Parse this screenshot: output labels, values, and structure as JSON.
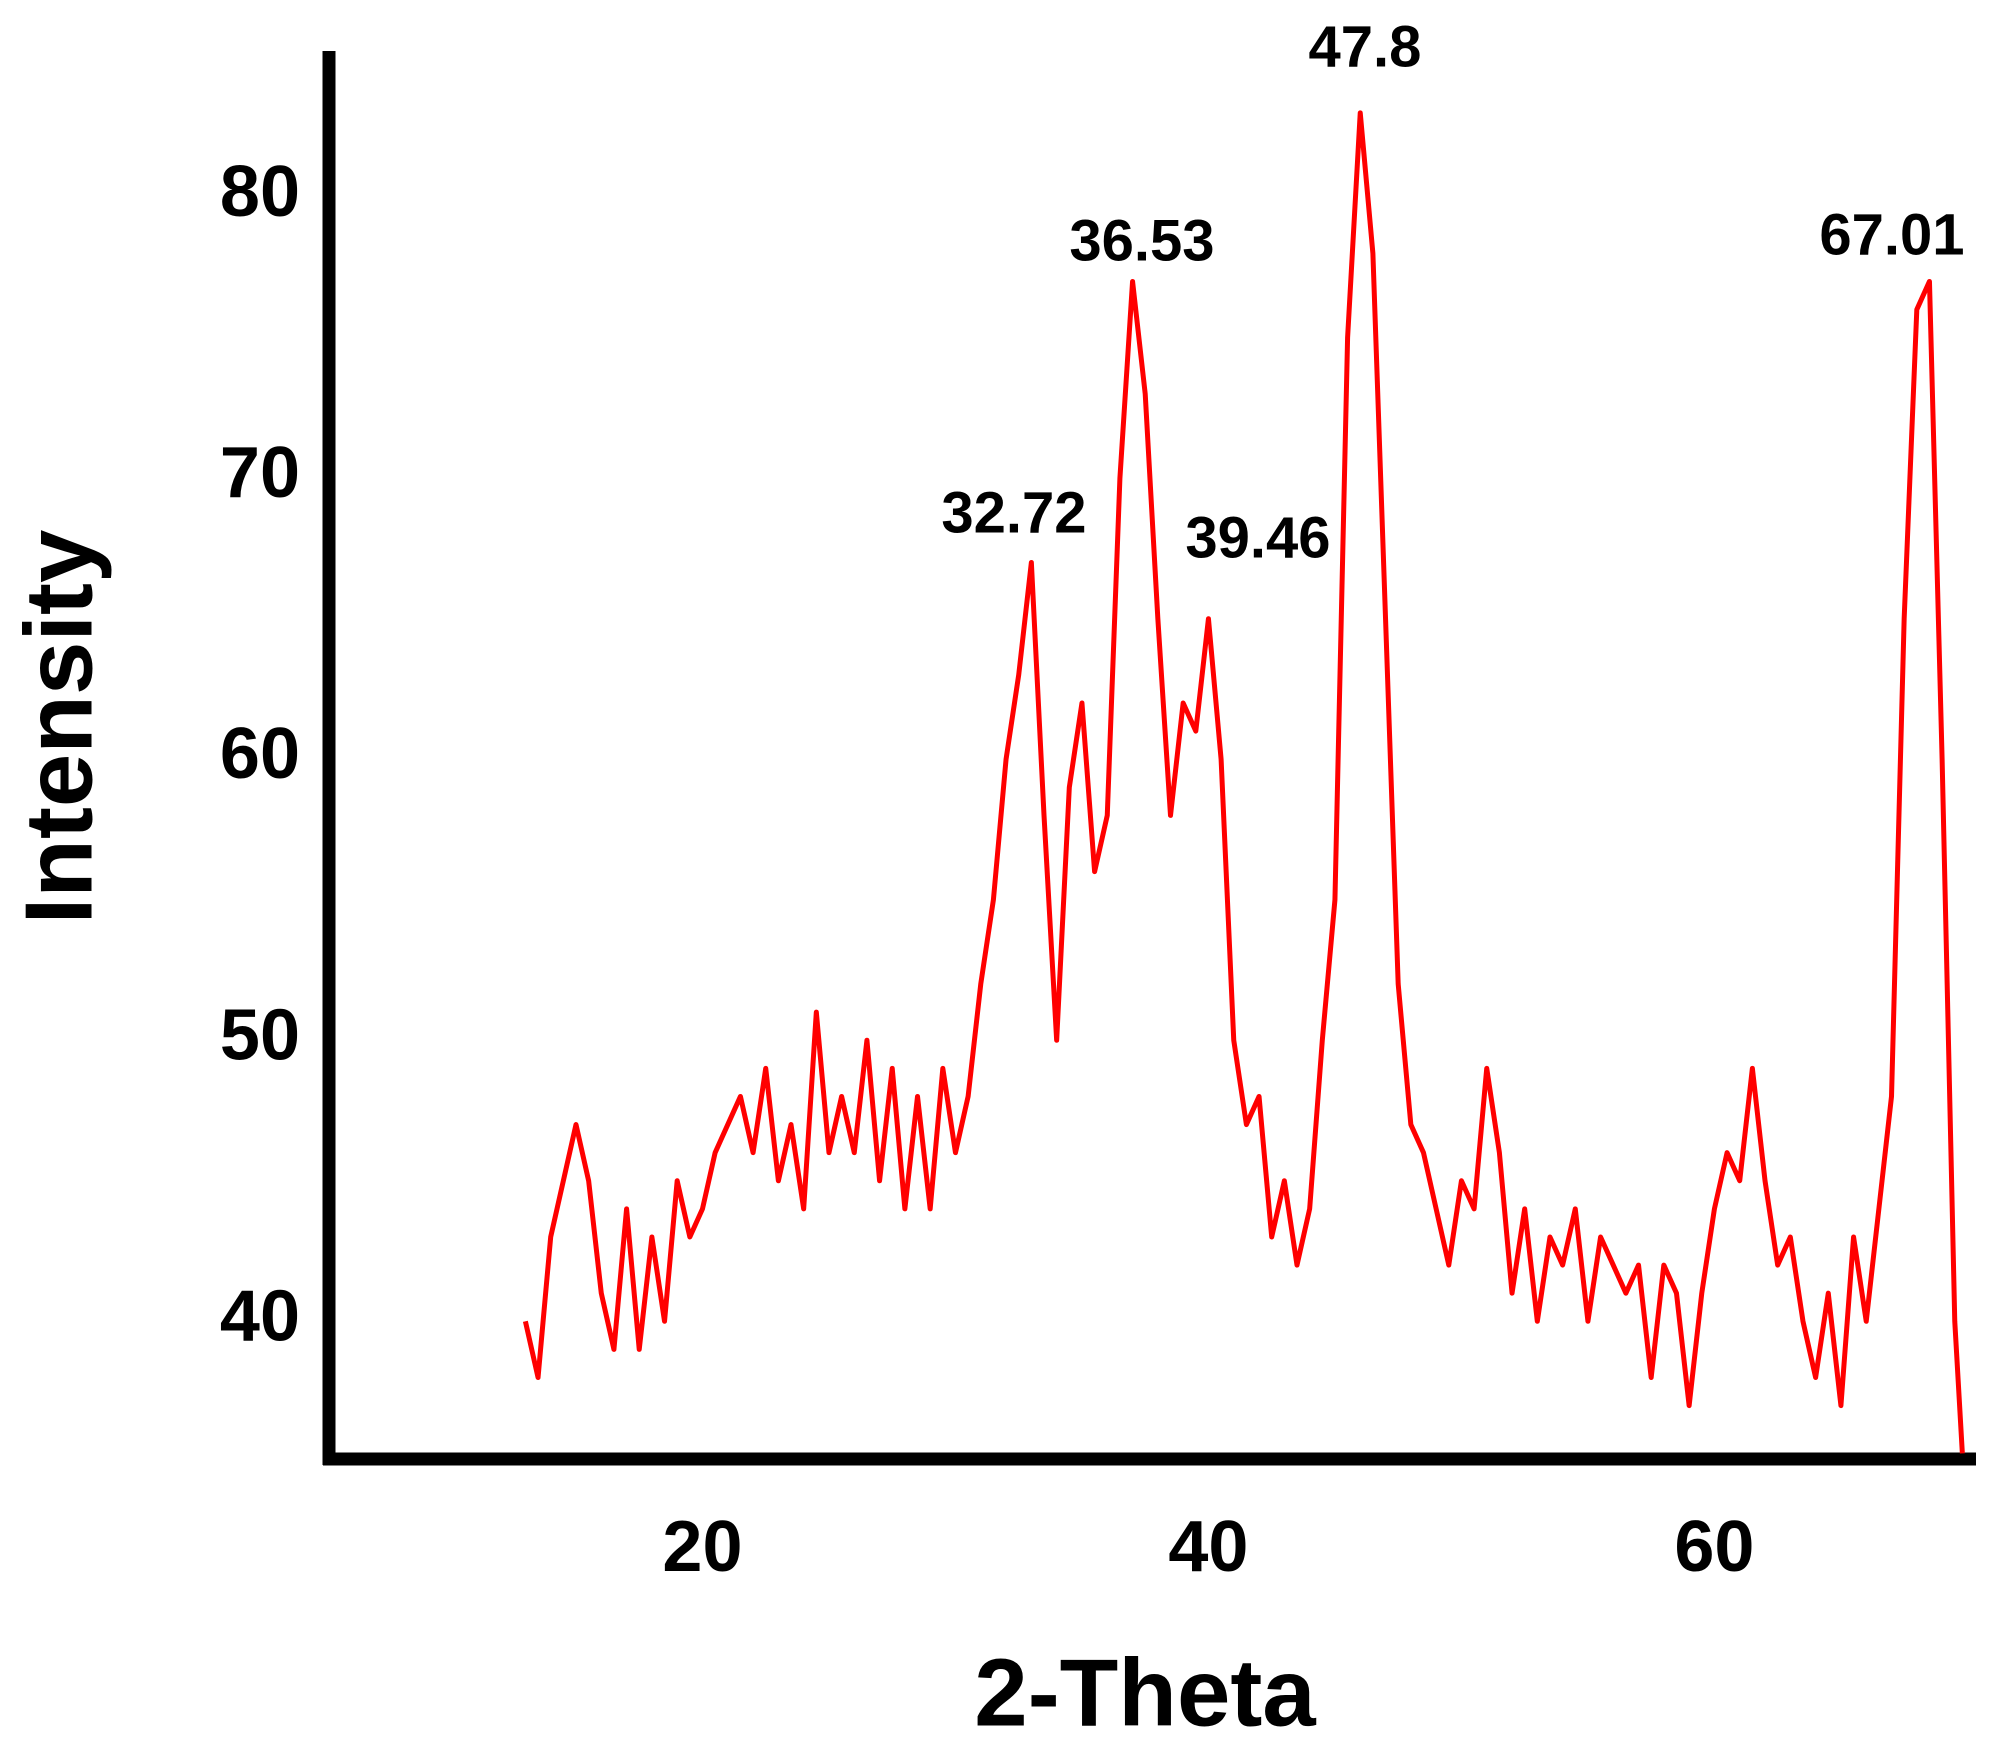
{
  "chart_data": {
    "type": "line",
    "xlabel": "2-Theta",
    "ylabel": "Intensity",
    "xlim": [
      5,
      70.3
    ],
    "ylim": [
      35.1,
      85.2
    ],
    "xticks": [
      20,
      40,
      60
    ],
    "yticks": [
      40,
      50,
      60,
      70,
      80
    ],
    "grid": false,
    "annotations": [
      "32.72",
      "36.53",
      "39.46",
      "47.8",
      "67.01"
    ],
    "series": [
      {
        "color": "#ff0000",
        "x": [
          13,
          13.5,
          14,
          14.5,
          15,
          15.5,
          16,
          16.5,
          17,
          17.5,
          18,
          18.5,
          19,
          19.5,
          20,
          20.5,
          21,
          21.5,
          22,
          22.5,
          23,
          23.5,
          24,
          24.5,
          25,
          25.5,
          26,
          26.5,
          27,
          27.5,
          28,
          28.5,
          29,
          29.5,
          30,
          30.5,
          31,
          31.5,
          32,
          32.5,
          33,
          33.5,
          34,
          34.5,
          35,
          35.5,
          36,
          36.5,
          37,
          37.5,
          38,
          38.5,
          39,
          39.5,
          40,
          40.5,
          41,
          41.5,
          42,
          42.5,
          43,
          43.5,
          44,
          44.5,
          45,
          45.5,
          46,
          46.5,
          47,
          47.5,
          48,
          48.5,
          49,
          49.5,
          50,
          50.5,
          51,
          51.5,
          52,
          52.5,
          53,
          53.5,
          54,
          54.5,
          55,
          55.5,
          56,
          56.5,
          57,
          57.5,
          58,
          58.5,
          59,
          59.5,
          60,
          60.5,
          61,
          61.5,
          62,
          62.5,
          63,
          63.5,
          64,
          64.5,
          65,
          65.5,
          66,
          66.5,
          67,
          67.5,
          68,
          68.5,
          69,
          69.5,
          69.8
        ],
        "values": [
          40,
          38,
          43,
          45,
          47,
          45,
          41,
          39,
          44,
          39,
          43,
          40,
          45,
          43,
          44,
          46,
          47,
          48,
          46,
          49,
          45,
          47,
          44,
          51,
          46,
          48,
          46,
          50,
          45,
          49,
          44,
          48,
          44,
          49,
          46,
          48,
          52,
          55,
          60,
          63,
          67,
          58,
          50,
          59,
          62,
          56,
          58,
          70,
          77,
          73,
          65,
          58,
          62,
          61,
          65,
          60,
          50,
          47,
          48,
          43,
          45,
          42,
          44,
          50,
          55,
          75,
          83,
          78,
          65,
          52,
          47,
          46,
          44,
          42,
          45,
          44,
          49,
          46,
          41,
          44,
          40,
          43,
          42,
          44,
          40,
          43,
          42,
          41,
          42,
          38,
          42,
          41,
          37,
          41,
          44,
          46,
          45,
          49,
          45,
          42,
          43,
          40,
          38,
          41,
          37,
          43,
          40,
          44,
          48,
          65,
          76,
          77,
          60,
          40,
          35.3
        ]
      }
    ]
  }
}
